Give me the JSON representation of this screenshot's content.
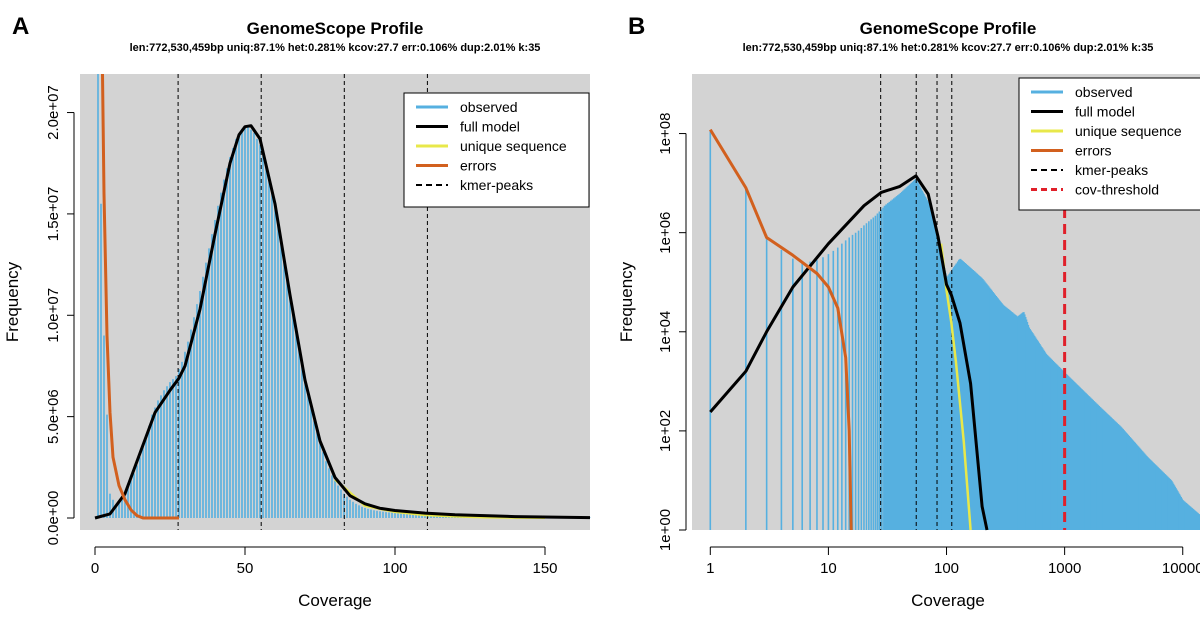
{
  "panels": [
    {
      "letter": "A",
      "title": "GenomeScope Profile",
      "subtitle": "len:772,530,459bp uniq:87.1%  het:0.281% kcov:27.7 err:0.106%  dup:2.01%  k:35",
      "xlabel": "Coverage",
      "ylabel": "Frequency",
      "x_ticks": [
        "0",
        "50",
        "100",
        "150"
      ],
      "y_ticks": [
        "0.0e+00",
        "5.0e+06",
        "1.0e+07",
        "1.5e+07",
        "2.0e+07"
      ],
      "legend": [
        "observed",
        "full model",
        "unique sequence",
        "errors",
        "kmer-peaks"
      ]
    },
    {
      "letter": "B",
      "title": "GenomeScope Profile",
      "subtitle": "len:772,530,459bp uniq:87.1%  het:0.281% kcov:27.7 err:0.106%  dup:2.01%  k:35",
      "xlabel": "Coverage",
      "ylabel": "Frequency",
      "x_ticks": [
        "1",
        "10",
        "100",
        "1000",
        "10000"
      ],
      "y_ticks": [
        "1e+00",
        "1e+02",
        "1e+04",
        "1e+06",
        "1e+08"
      ],
      "legend": [
        "observed",
        "full model",
        "unique sequence",
        "errors",
        "kmer-peaks",
        "cov-threshold"
      ]
    }
  ],
  "colors": {
    "observed": "#56B0E0",
    "full_model": "#000000",
    "unique_sequence": "#E8E84A",
    "errors": "#D2601E",
    "kmer_peaks": "#000000",
    "cov_threshold": "#E0202A",
    "plot_bg": "#D3D3D3"
  },
  "chart_data": [
    {
      "type": "bar",
      "scale": "linear",
      "xlim": [
        -5,
        165
      ],
      "ylim": [
        0,
        22000000
      ],
      "kmer_peaks": [
        27.7,
        55.4,
        83.1,
        110.8
      ],
      "observed": {
        "x": [
          1,
          3,
          5,
          7,
          9,
          11,
          13,
          15,
          17,
          19,
          21,
          23,
          25,
          27,
          29,
          31,
          33,
          35,
          37,
          39,
          41,
          43,
          45,
          47,
          49,
          51,
          53,
          55,
          57,
          59,
          61,
          63,
          65,
          67,
          69,
          71,
          73,
          75,
          77,
          79,
          81,
          83,
          85,
          87,
          89,
          91,
          93,
          95,
          97,
          99,
          101,
          105,
          110,
          120,
          130,
          140,
          150,
          165
        ],
        "y": [
          22000000,
          9000000,
          1200000,
          600000,
          900000,
          1500000,
          2200000,
          3000000,
          4000000,
          5100000,
          5800000,
          6300000,
          6700000,
          7000000,
          7700000,
          8700000,
          9900000,
          11200000,
          12600000,
          14000000,
          15400000,
          16700000,
          17800000,
          18700000,
          19200000,
          19300000,
          19000000,
          18400000,
          17400000,
          16100000,
          14500000,
          12800000,
          11000000,
          9300000,
          7600000,
          6100000,
          4800000,
          3700000,
          2800000,
          2100000,
          1600000,
          1200000,
          900000,
          700000,
          550000,
          450000,
          380000,
          330000,
          290000,
          260000,
          230000,
          190000,
          160000,
          120000,
          90000,
          60000,
          40000,
          20000
        ]
      },
      "full_model": {
        "x": [
          0,
          5,
          10,
          15,
          20,
          25,
          28,
          30,
          35,
          40,
          45,
          48,
          50,
          52,
          55,
          60,
          65,
          70,
          75,
          80,
          85,
          90,
          95,
          100,
          110,
          120,
          140,
          165
        ],
        "y": [
          0,
          200000,
          1200000,
          3200000,
          5200000,
          6300000,
          6900000,
          7500000,
          10300000,
          14000000,
          17500000,
          18900000,
          19300000,
          19350000,
          18700000,
          15500000,
          11000000,
          6800000,
          3800000,
          2000000,
          1100000,
          700000,
          480000,
          370000,
          240000,
          160000,
          70000,
          20000
        ]
      },
      "unique_sequence": {
        "x": [
          80,
          90,
          100,
          110,
          120,
          130,
          140,
          150
        ],
        "y": [
          1900000,
          600000,
          300000,
          150000,
          80000,
          40000,
          20000,
          10000
        ]
      },
      "errors": {
        "x": [
          2.5,
          3,
          4,
          5,
          6,
          8,
          10,
          12,
          14,
          16,
          28
        ],
        "y": [
          22000000,
          16000000,
          9000000,
          5200000,
          3000000,
          1600000,
          900000,
          400000,
          120000,
          0,
          0
        ]
      }
    },
    {
      "type": "bar",
      "scale": "log-log",
      "xlim": [
        0.7,
        14000
      ],
      "ylim": [
        1,
        1000000000
      ],
      "kmer_peaks": [
        27.7,
        55.4,
        83.1,
        110.8
      ],
      "cov_threshold": 1000,
      "observed": {
        "x": [
          1,
          2,
          3,
          4,
          5,
          6,
          7,
          8,
          9,
          10,
          11,
          12,
          13,
          14,
          15,
          16,
          18,
          20,
          25,
          30,
          40,
          55,
          70,
          85,
          100,
          130,
          200,
          300,
          400,
          450,
          500,
          700,
          1000,
          2000,
          3000,
          5000,
          8000,
          10000,
          14000
        ],
        "y": [
          110000000,
          8000000,
          900000,
          450000,
          300000,
          260000,
          260000,
          280000,
          320000,
          370000,
          430000,
          500000,
          600000,
          700000,
          800000,
          900000,
          1100000,
          1400000,
          2200000,
          3500000,
          6000000,
          12000000,
          4000000,
          800000,
          120000,
          300000,
          120000,
          35000,
          20000,
          25000,
          12000,
          3500,
          1500,
          300,
          120,
          30,
          10,
          4,
          2
        ]
      },
      "full_model": {
        "x": [
          1,
          2,
          3,
          5,
          10,
          20,
          28,
          40,
          55,
          70,
          85,
          100,
          110,
          130,
          160,
          200,
          220
        ],
        "y": [
          240,
          1600,
          10000,
          80000,
          600000,
          3500000,
          6500000,
          8500000,
          14000000,
          6000000,
          800000,
          90000,
          55000,
          15000,
          900,
          3,
          1
        ]
      },
      "unique_sequence": {
        "x": [
          90,
          100,
          110,
          120,
          140,
          160
        ],
        "y": [
          600000,
          70000,
          15000,
          2500,
          60,
          1
        ]
      },
      "errors": {
        "x": [
          1,
          2,
          3,
          5,
          8,
          10,
          12,
          14,
          15,
          15.6
        ],
        "y": [
          120000000,
          8000000,
          800000,
          350000,
          150000,
          80000,
          30000,
          3000,
          100,
          1
        ]
      }
    }
  ]
}
